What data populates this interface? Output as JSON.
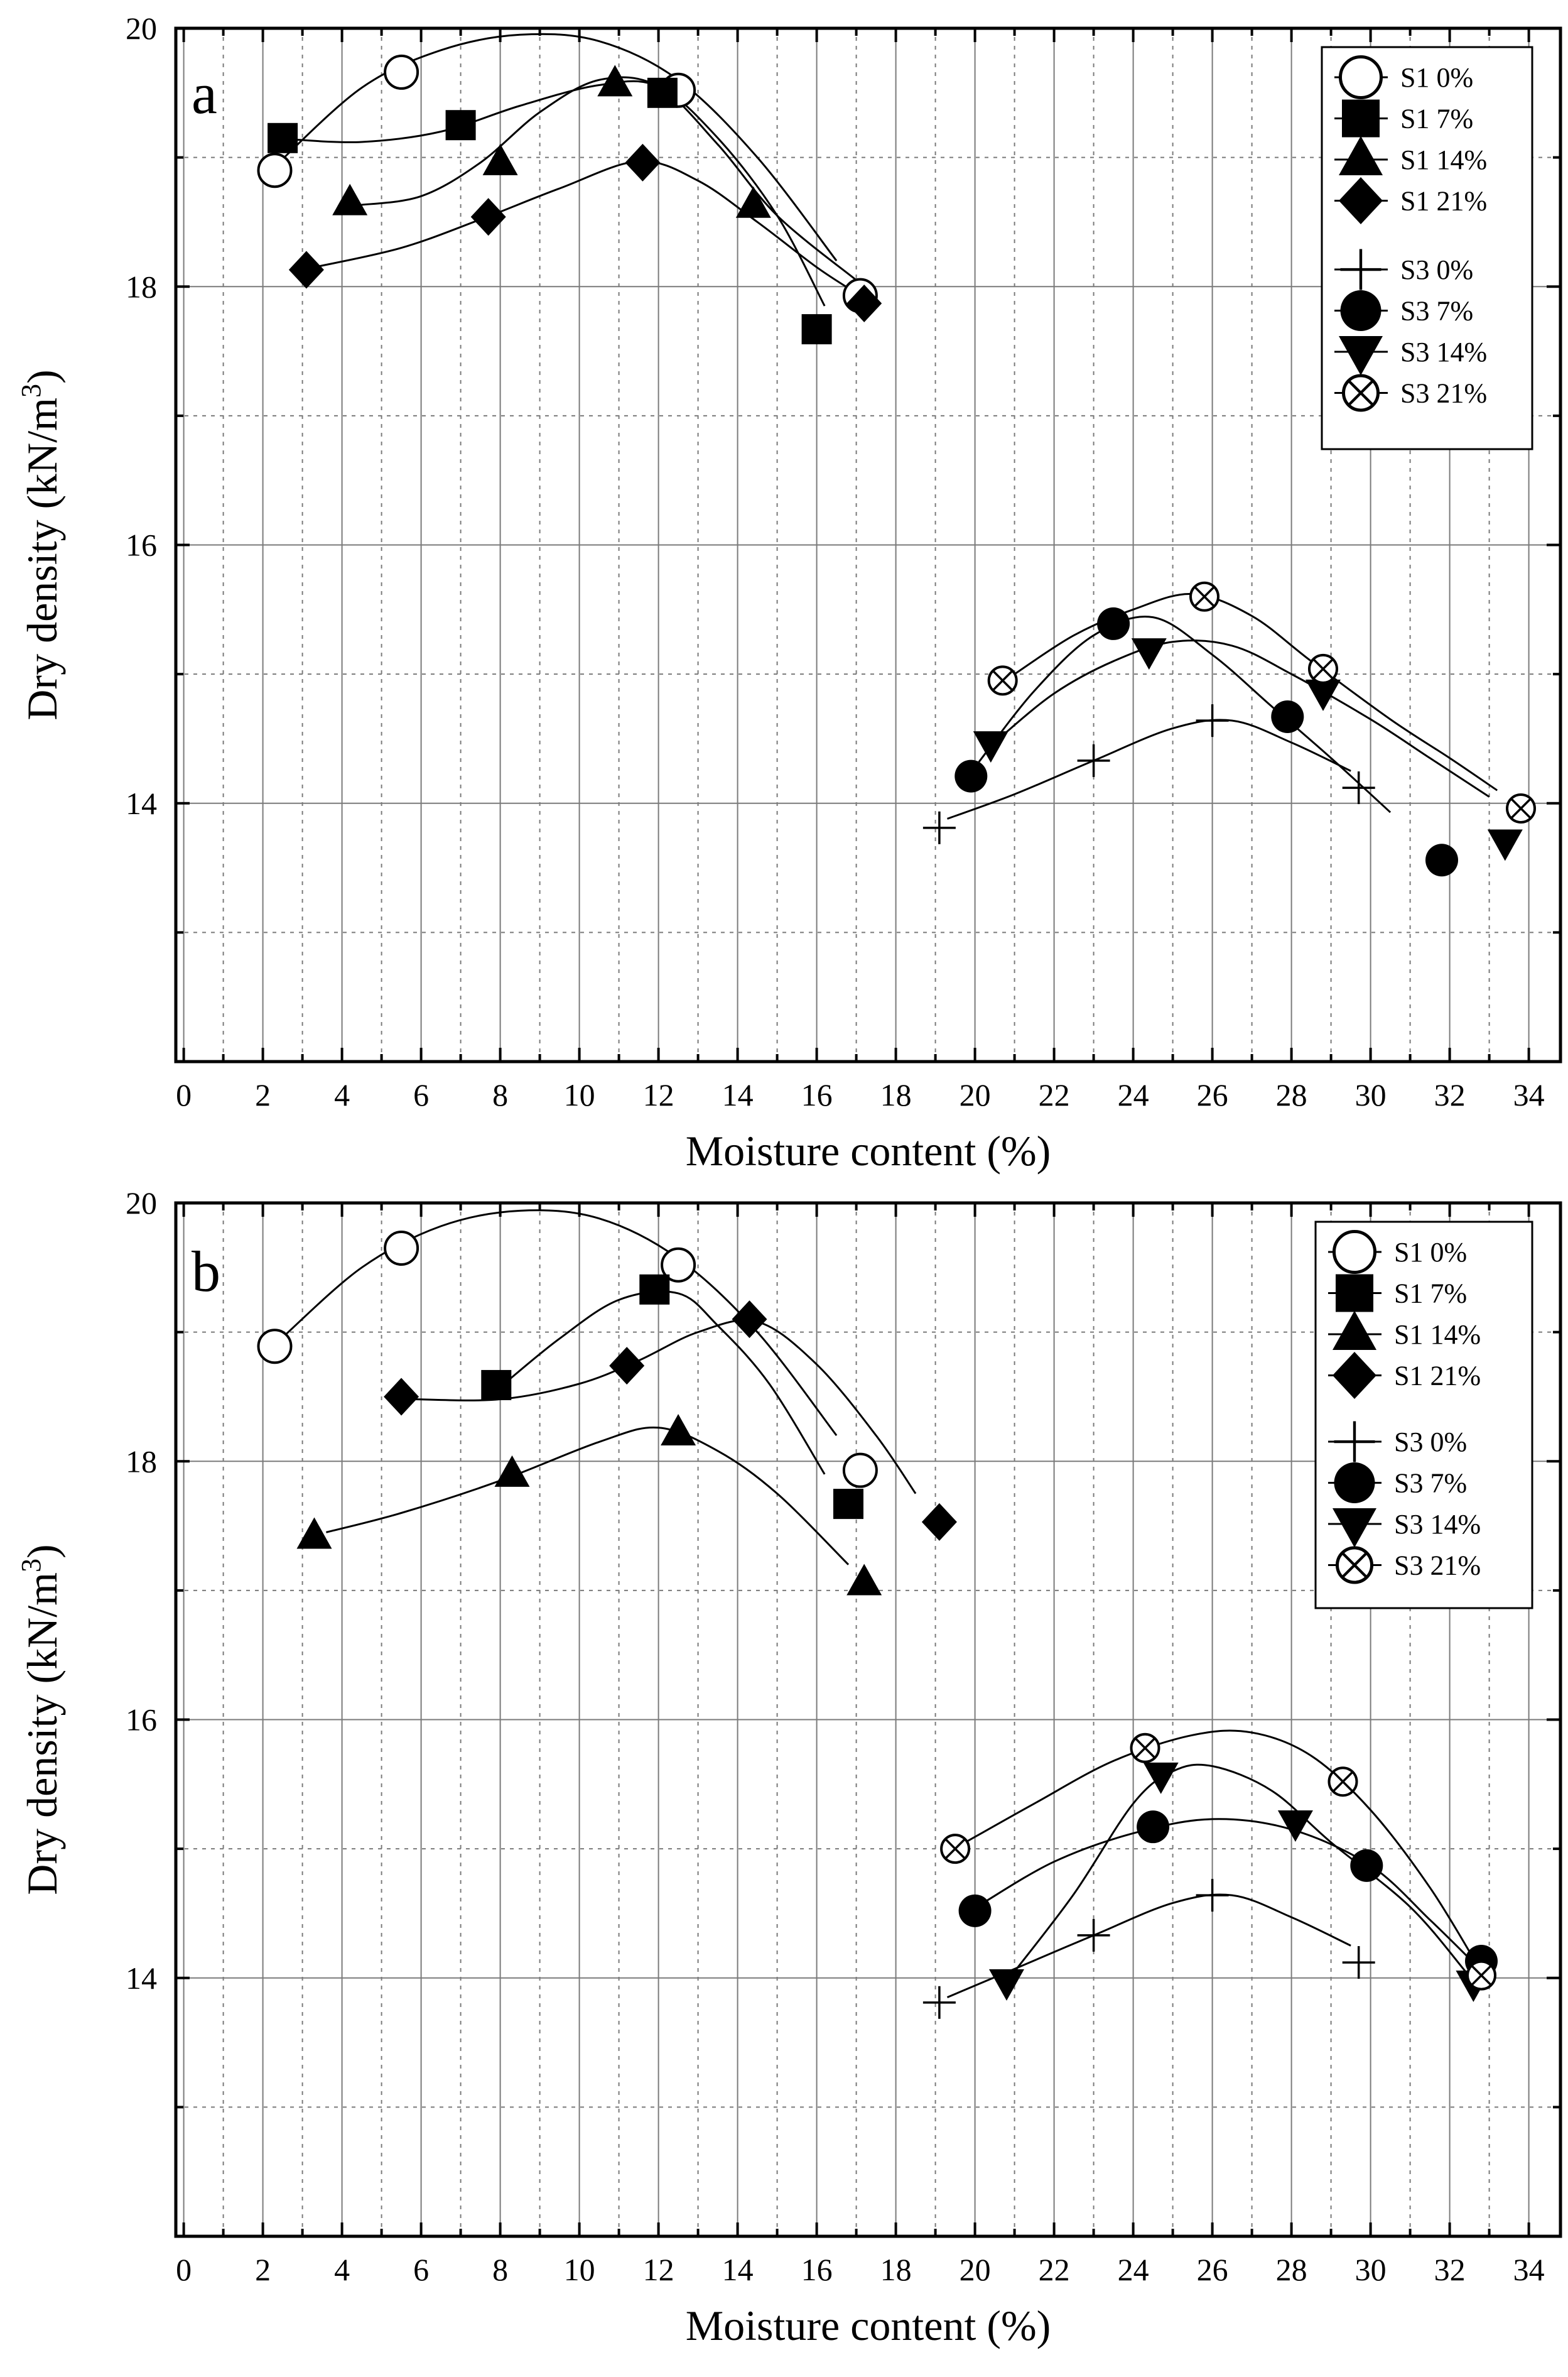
{
  "chart_data": [
    {
      "type": "line",
      "panel_label": "a",
      "xlabel": "Moisture content (%)",
      "ylabel": "Dry density (kN/m3)",
      "ylabel_parts": {
        "main": "Dry density (kN/m",
        "sup": "3",
        "end": ")"
      },
      "xlim": [
        -0.2,
        34.8
      ],
      "ylim": [
        12.0,
        20.0
      ],
      "x_ticks": [
        "0",
        "2",
        "4",
        "6",
        "8",
        "10",
        "12",
        "14",
        "16",
        "18",
        "20",
        "22",
        "24",
        "26",
        "28",
        "30",
        "32",
        "34"
      ],
      "y_ticks": [
        "14",
        "16",
        "18",
        "20"
      ],
      "grid": true,
      "legend_position": "top-right",
      "series": [
        {
          "name": "S1 0%",
          "marker": "circle-open",
          "points": [
            [
              2.3,
              18.9
            ],
            [
              5.5,
              19.66
            ],
            [
              12.5,
              19.52
            ],
            [
              17.1,
              17.93
            ]
          ]
        },
        {
          "name": "S1 7%",
          "marker": "square",
          "points": [
            [
              2.5,
              19.15
            ],
            [
              7.0,
              19.25
            ],
            [
              12.1,
              19.5
            ],
            [
              16.0,
              17.67
            ]
          ]
        },
        {
          "name": "S1 14%",
          "marker": "triangle-up",
          "points": [
            [
              4.2,
              18.65
            ],
            [
              8.0,
              18.96
            ],
            [
              10.9,
              19.57
            ],
            [
              14.4,
              18.63
            ]
          ]
        },
        {
          "name": "S1 21%",
          "marker": "diamond",
          "points": [
            [
              3.1,
              18.13
            ],
            [
              7.7,
              18.54
            ],
            [
              11.6,
              18.96
            ],
            [
              17.2,
              17.87
            ]
          ]
        },
        {
          "name": "S3 0%",
          "marker": "plus",
          "points": [
            [
              19.1,
              13.81
            ],
            [
              23.0,
              14.33
            ],
            [
              26.0,
              14.64
            ],
            [
              29.7,
              14.12
            ]
          ]
        },
        {
          "name": "S3 7%",
          "marker": "circle-filled",
          "points": [
            [
              19.9,
              14.21
            ],
            [
              23.5,
              15.39
            ],
            [
              27.9,
              14.67
            ],
            [
              31.8,
              13.56
            ]
          ]
        },
        {
          "name": "S3 14%",
          "marker": "triangle-down",
          "points": [
            [
              20.4,
              14.46
            ],
            [
              24.4,
              15.18
            ],
            [
              28.8,
              14.86
            ],
            [
              33.4,
              13.7
            ]
          ]
        },
        {
          "name": "S3  21%",
          "marker": "circle-cross",
          "points": [
            [
              20.7,
              14.95
            ],
            [
              25.8,
              15.6
            ],
            [
              28.8,
              15.04
            ],
            [
              33.8,
              13.96
            ]
          ]
        }
      ],
      "curves": [
        {
          "series": "S1 0%",
          "points": [
            [
              2.4,
              18.96
            ],
            [
              4.5,
              19.54
            ],
            [
              6.5,
              19.83
            ],
            [
              8.5,
              19.95
            ],
            [
              10.5,
              19.9
            ],
            [
              12.5,
              19.6
            ],
            [
              14.5,
              19.0
            ],
            [
              16.5,
              18.2
            ]
          ]
        },
        {
          "series": "S1 7%",
          "points": [
            [
              2.7,
              19.14
            ],
            [
              4.5,
              19.12
            ],
            [
              6.5,
              19.2
            ],
            [
              8.5,
              19.4
            ],
            [
              10.5,
              19.56
            ],
            [
              12.0,
              19.55
            ],
            [
              13.5,
              19.15
            ],
            [
              15.0,
              18.55
            ],
            [
              16.2,
              17.85
            ]
          ]
        },
        {
          "series": "S1 14%",
          "points": [
            [
              4.4,
              18.63
            ],
            [
              6.0,
              18.7
            ],
            [
              7.5,
              18.96
            ],
            [
              9.0,
              19.35
            ],
            [
              10.5,
              19.6
            ],
            [
              12.0,
              19.55
            ],
            [
              13.5,
              19.1
            ],
            [
              15.0,
              18.55
            ],
            [
              17.0,
              18.05
            ]
          ]
        },
        {
          "series": "S1 21%",
          "points": [
            [
              3.3,
              18.15
            ],
            [
              5.5,
              18.3
            ],
            [
              7.5,
              18.52
            ],
            [
              9.5,
              18.76
            ],
            [
              11.5,
              18.97
            ],
            [
              13.0,
              18.82
            ],
            [
              14.5,
              18.5
            ],
            [
              16.0,
              18.15
            ],
            [
              17.0,
              17.95
            ]
          ]
        },
        {
          "series": "S3 0%",
          "points": [
            [
              19.3,
              13.88
            ],
            [
              21.0,
              14.07
            ],
            [
              23.0,
              14.33
            ],
            [
              25.0,
              14.58
            ],
            [
              26.5,
              14.64
            ],
            [
              28.0,
              14.47
            ],
            [
              29.5,
              14.25
            ]
          ]
        },
        {
          "series": "S3 7%",
          "points": [
            [
              20.1,
              14.32
            ],
            [
              21.5,
              14.87
            ],
            [
              23.0,
              15.3
            ],
            [
              24.5,
              15.44
            ],
            [
              26.0,
              15.15
            ],
            [
              27.5,
              14.75
            ],
            [
              29.0,
              14.35
            ],
            [
              30.5,
              13.93
            ]
          ]
        },
        {
          "series": "S3 14%",
          "points": [
            [
              20.6,
              14.5
            ],
            [
              22.0,
              14.85
            ],
            [
              23.5,
              15.1
            ],
            [
              25.0,
              15.25
            ],
            [
              26.5,
              15.22
            ],
            [
              28.0,
              15.0
            ],
            [
              30.0,
              14.65
            ],
            [
              31.5,
              14.35
            ],
            [
              33.0,
              14.05
            ]
          ]
        },
        {
          "series": "S3  21%",
          "points": [
            [
              21.0,
              15.0
            ],
            [
              22.5,
              15.3
            ],
            [
              24.0,
              15.5
            ],
            [
              25.5,
              15.62
            ],
            [
              27.0,
              15.45
            ],
            [
              28.5,
              15.1
            ],
            [
              30.5,
              14.65
            ],
            [
              32.0,
              14.35
            ],
            [
              33.2,
              14.1
            ]
          ]
        }
      ]
    },
    {
      "type": "line",
      "panel_label": "b",
      "xlabel": "Moisture content (%)",
      "ylabel": "Dry density (kN/m3)",
      "ylabel_parts": {
        "main": "Dry density (kN/m",
        "sup": "3",
        "end": ")"
      },
      "xlim": [
        -0.2,
        34.8
      ],
      "ylim": [
        12.0,
        20.0
      ],
      "x_ticks": [
        "0",
        "2",
        "4",
        "6",
        "8",
        "10",
        "12",
        "14",
        "16",
        "18",
        "20",
        "22",
        "24",
        "26",
        "28",
        "30",
        "32",
        "34"
      ],
      "y_ticks": [
        "14",
        "16",
        "18",
        "20"
      ],
      "grid": true,
      "legend_position": "top-right",
      "series": [
        {
          "name": "S1   0%",
          "marker": "circle-open",
          "points": [
            [
              2.3,
              18.89
            ],
            [
              5.5,
              19.65
            ],
            [
              12.5,
              19.52
            ],
            [
              17.1,
              17.93
            ]
          ]
        },
        {
          "name": "S1   7%",
          "marker": "square",
          "points": [
            [
              7.9,
              18.59
            ],
            [
              11.9,
              19.33
            ],
            [
              16.8,
              17.67
            ]
          ]
        },
        {
          "name": "S1 14%",
          "marker": "triangle-up",
          "points": [
            [
              3.3,
              17.42
            ],
            [
              8.3,
              17.9
            ],
            [
              12.5,
              18.22
            ],
            [
              17.2,
              17.06
            ]
          ]
        },
        {
          "name": "S1 21%",
          "marker": "diamond",
          "points": [
            [
              5.5,
              18.5
            ],
            [
              11.2,
              18.74
            ],
            [
              14.3,
              19.1
            ],
            [
              19.1,
              17.53
            ]
          ]
        },
        {
          "name": "S3   0%",
          "marker": "plus",
          "points": [
            [
              19.1,
              13.81
            ],
            [
              23.0,
              14.33
            ],
            [
              26.0,
              14.64
            ],
            [
              29.7,
              14.12
            ]
          ]
        },
        {
          "name": "S3   7%",
          "marker": "circle-filled",
          "points": [
            [
              20.0,
              14.52
            ],
            [
              24.5,
              15.17
            ],
            [
              29.9,
              14.87
            ],
            [
              32.8,
              14.13
            ]
          ]
        },
        {
          "name": "S3 14%",
          "marker": "triangle-down",
          "points": [
            [
              20.8,
              13.97
            ],
            [
              24.7,
              15.57
            ],
            [
              28.1,
              15.2
            ],
            [
              32.6,
              13.96
            ]
          ]
        },
        {
          "name": "S3 21%",
          "marker": "circle-cross",
          "points": [
            [
              19.5,
              15.0
            ],
            [
              24.3,
              15.78
            ],
            [
              29.3,
              15.52
            ],
            [
              32.8,
              14.02
            ]
          ]
        }
      ],
      "curves": [
        {
          "series": "S1   0%",
          "points": [
            [
              2.5,
              18.96
            ],
            [
              4.5,
              19.5
            ],
            [
              6.5,
              19.82
            ],
            [
              8.5,
              19.94
            ],
            [
              10.5,
              19.88
            ],
            [
              12.5,
              19.57
            ],
            [
              14.5,
              19.0
            ],
            [
              16.5,
              18.2
            ]
          ]
        },
        {
          "series": "S1   7%",
          "points": [
            [
              8.1,
              18.6
            ],
            [
              9.5,
              18.95
            ],
            [
              11.0,
              19.25
            ],
            [
              12.5,
              19.3
            ],
            [
              13.5,
              19.05
            ],
            [
              14.8,
              18.6
            ],
            [
              16.2,
              17.9
            ]
          ]
        },
        {
          "series": "S1 14%",
          "points": [
            [
              3.6,
              17.45
            ],
            [
              5.5,
              17.6
            ],
            [
              8.0,
              17.85
            ],
            [
              10.5,
              18.15
            ],
            [
              12.0,
              18.26
            ],
            [
              13.5,
              18.08
            ],
            [
              15.0,
              17.75
            ],
            [
              16.8,
              17.2
            ]
          ]
        },
        {
          "series": "S1 21%",
          "points": [
            [
              5.8,
              18.48
            ],
            [
              8.0,
              18.48
            ],
            [
              10.0,
              18.6
            ],
            [
              11.5,
              18.78
            ],
            [
              13.0,
              19.0
            ],
            [
              14.5,
              19.08
            ],
            [
              16.0,
              18.75
            ],
            [
              17.5,
              18.2
            ],
            [
              18.5,
              17.75
            ]
          ]
        },
        {
          "series": "S3   0%",
          "points": [
            [
              19.3,
              13.85
            ],
            [
              21.0,
              14.07
            ],
            [
              23.0,
              14.33
            ],
            [
              25.0,
              14.58
            ],
            [
              26.5,
              14.64
            ],
            [
              28.0,
              14.47
            ],
            [
              29.5,
              14.25
            ]
          ]
        },
        {
          "series": "S3   7%",
          "points": [
            [
              20.2,
              14.58
            ],
            [
              22.0,
              14.9
            ],
            [
              24.0,
              15.12
            ],
            [
              26.0,
              15.23
            ],
            [
              28.0,
              15.15
            ],
            [
              30.0,
              14.87
            ],
            [
              31.5,
              14.45
            ],
            [
              32.5,
              14.15
            ]
          ]
        },
        {
          "series": "S3 14%",
          "points": [
            [
              21.0,
              14.05
            ],
            [
              22.5,
              14.65
            ],
            [
              24.0,
              15.35
            ],
            [
              25.0,
              15.6
            ],
            [
              26.0,
              15.64
            ],
            [
              27.5,
              15.45
            ],
            [
              29.0,
              15.05
            ],
            [
              31.0,
              14.55
            ],
            [
              32.4,
              14.05
            ]
          ]
        },
        {
          "series": "S3 21%",
          "points": [
            [
              19.7,
              15.04
            ],
            [
              21.5,
              15.35
            ],
            [
              23.5,
              15.68
            ],
            [
              25.5,
              15.88
            ],
            [
              27.0,
              15.9
            ],
            [
              28.5,
              15.72
            ],
            [
              30.0,
              15.3
            ],
            [
              31.5,
              14.7
            ],
            [
              32.7,
              14.1
            ]
          ]
        }
      ]
    }
  ]
}
